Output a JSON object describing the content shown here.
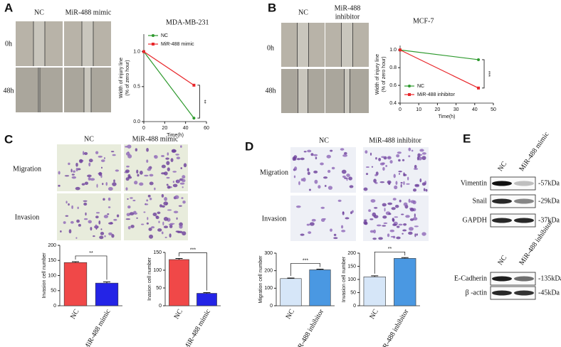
{
  "panels": [
    {
      "label": "A",
      "columns": [
        "NC",
        "MiR-488 mimic"
      ],
      "rows": [
        "0h",
        "48h"
      ]
    },
    {
      "label": "B",
      "columns": [
        "NC",
        [
          "MiR-488",
          "inhibitor"
        ]
      ],
      "rows": [
        "0h",
        "48h"
      ]
    },
    {
      "label": "C",
      "columns": [
        "NC",
        "MiR-488 mimic"
      ],
      "rows": [
        "Migration",
        "Invasion"
      ]
    },
    {
      "label": "D",
      "columns": [
        "NC",
        "MiR-488 inhibitor"
      ],
      "rows": [
        "Migration",
        "Invasion"
      ]
    },
    {
      "label": "E",
      "blots": [
        {
          "columns": [
            "NC",
            "MiR-488 mimic"
          ],
          "bands": [
            {
              "name": "Vimentin",
              "size": "-57kDa"
            },
            {
              "name": "Snail",
              "size": "-29kDa"
            },
            {
              "name": "GAPDH",
              "size": "-37kDa"
            }
          ]
        },
        {
          "columns": [
            "NC",
            "MiR-488 inhibitor"
          ],
          "bands": [
            {
              "name": "E-Cadherin",
              "size": "-135kDa"
            },
            {
              "name": "β -actin",
              "size": "-45kDa"
            }
          ]
        }
      ]
    }
  ],
  "chart_data": [
    {
      "type": "line",
      "title": "MDA-MB-231",
      "xlabel": "Time(h)",
      "ylabel": [
        "Width of injury line",
        "(% of zero hour)"
      ],
      "x": [
        0,
        48
      ],
      "xlim": [
        0,
        60
      ],
      "xticks": [
        0,
        20,
        40,
        60
      ],
      "ylim": [
        0,
        1.25
      ],
      "yticks": [
        {
          "value": 0,
          "label": "0.0"
        },
        0.5,
        {
          "value": 1,
          "label": "1.0"
        }
      ],
      "series": [
        {
          "name": "NC",
          "color": "#2e9a2e",
          "values": [
            1.0,
            0.05
          ]
        },
        {
          "name": "MiR-488 mimic",
          "color": "#e8262a",
          "values": [
            1.0,
            0.52
          ]
        }
      ],
      "legend": "upper left",
      "annotation": "**"
    },
    {
      "type": "line",
      "title": "MCF-7",
      "xlabel": "Time(h)",
      "ylabel": [
        "Width of injury line",
        "(% of zero hour)"
      ],
      "x": [
        0,
        42
      ],
      "xlim": [
        0,
        50
      ],
      "xticks": [
        0,
        10,
        20,
        30,
        40,
        50
      ],
      "ylim": [
        0.4,
        1.05
      ],
      "yticks": [
        0.4,
        0.6,
        0.8,
        {
          "value": 1,
          "label": "1.0"
        }
      ],
      "series": [
        {
          "name": "NC",
          "color": "#2e9a2e",
          "values": [
            1.0,
            0.89
          ]
        },
        {
          "name": "MiR-488 inhibitor",
          "color": "#e8262a",
          "values": [
            1.0,
            0.57
          ]
        }
      ],
      "legend": "lower left",
      "annotation": "***"
    },
    {
      "type": "bar",
      "ylabel": "Invasion cell number",
      "categories": [
        "NC",
        "MiR-488 mimic"
      ],
      "values": [
        143,
        75
      ],
      "errors": [
        3,
        4
      ],
      "colors": [
        "#f04848",
        "#2424e6"
      ],
      "ylim": [
        0,
        200
      ],
      "yticks": [
        0,
        50,
        100,
        150,
        200
      ],
      "annotation": "**"
    },
    {
      "type": "bar",
      "ylabel": "Inasion cell number",
      "categories": [
        "NC",
        "MiR-488 mimic"
      ],
      "values": [
        130,
        35
      ],
      "errors": [
        3,
        2
      ],
      "colors": [
        "#f04848",
        "#2424e6"
      ],
      "ylim": [
        0,
        150
      ],
      "yticks": [
        0,
        50,
        100,
        150
      ],
      "annotation": "***"
    },
    {
      "type": "bar",
      "ylabel": "Migration cell number",
      "categories": [
        "NC",
        "MiR-488 inhibitor"
      ],
      "values": [
        155,
        205
      ],
      "errors": [
        3,
        4
      ],
      "colors": [
        "#d6e6f8",
        "#4a98e2"
      ],
      "ylim": [
        0,
        300
      ],
      "yticks": [
        0,
        100,
        200,
        300
      ],
      "annotation": "***"
    },
    {
      "type": "bar",
      "ylabel": "Invasion cell number",
      "categories": [
        "NC",
        "MiR-488 inhibitor"
      ],
      "values": [
        110,
        180
      ],
      "errors": [
        4,
        3
      ],
      "colors": [
        "#d6e6f8",
        "#4a98e2"
      ],
      "ylim": [
        0,
        200
      ],
      "yticks": [
        0,
        50,
        100,
        150,
        200
      ],
      "annotation": "**"
    }
  ]
}
